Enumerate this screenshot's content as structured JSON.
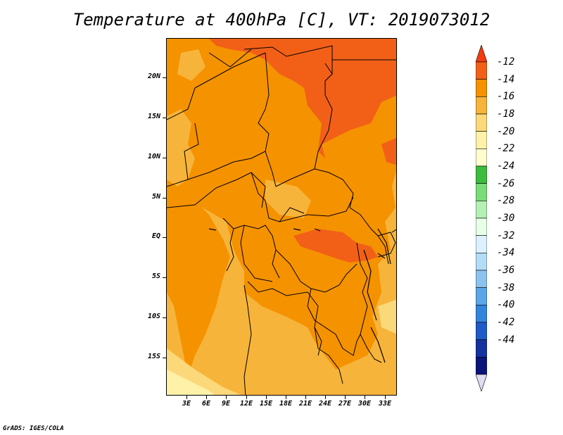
{
  "title": "Temperature at 400hPa [C], VT: 2019073012",
  "credit": "GrADS: IGES/COLA",
  "map": {
    "lat_labels": [
      "20N",
      "15N",
      "10N",
      "5N",
      "EQ",
      "5S",
      "10S",
      "15S"
    ],
    "lon_labels": [
      "3E",
      "6E",
      "9E",
      "12E",
      "15E",
      "18E",
      "21E",
      "24E",
      "27E",
      "30E",
      "33E"
    ],
    "field_colors": {
      "c_m12": "#f26018",
      "c_m14": "#f59200",
      "c_m16": "#f7b43a",
      "c_m18": "#fbd87a",
      "c_m20": "#fff1a8"
    }
  },
  "colorbar": {
    "labels": [
      "-12",
      "-14",
      "-16",
      "-18",
      "-20",
      "-22",
      "-24",
      "-26",
      "-28",
      "-30",
      "-32",
      "-34",
      "-36",
      "-38",
      "-40",
      "-42",
      "-44"
    ],
    "colors": [
      "#f23c10",
      "#f26018",
      "#f59200",
      "#f7b43a",
      "#fbd87a",
      "#fff1a8",
      "#fffcd0",
      "#3cbc3c",
      "#78dc78",
      "#b4f0b4",
      "#e6ffe6",
      "#dcf0ff",
      "#b4dcf6",
      "#8cc2ee",
      "#5aa6e8",
      "#3284dc",
      "#1e5ac8",
      "#1432a0",
      "#0a147a",
      "#e1dcf0"
    ]
  }
}
